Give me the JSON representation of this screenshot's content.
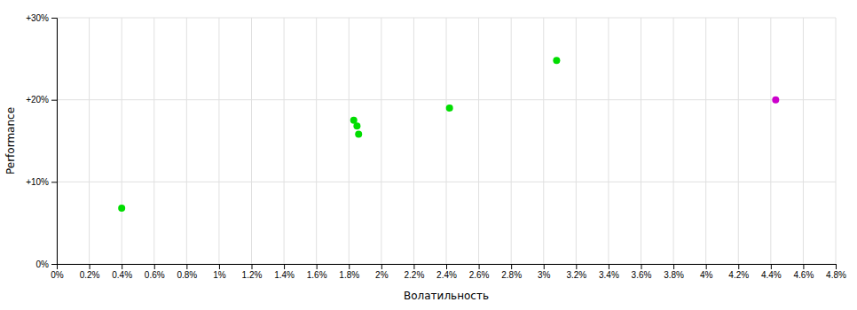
{
  "chart_data": {
    "type": "scatter",
    "xlabel": "Волатильность",
    "ylabel": "Performance",
    "xlim": [
      0,
      0.048
    ],
    "ylim": [
      0,
      0.3
    ],
    "xticks": [
      {
        "value": 0.0,
        "label": "0%"
      },
      {
        "value": 0.002,
        "label": "0.2%"
      },
      {
        "value": 0.004,
        "label": "0.4%"
      },
      {
        "value": 0.006,
        "label": "0.6%"
      },
      {
        "value": 0.008,
        "label": "0.8%"
      },
      {
        "value": 0.01,
        "label": "1%"
      },
      {
        "value": 0.012,
        "label": "1.2%"
      },
      {
        "value": 0.014,
        "label": "1.4%"
      },
      {
        "value": 0.016,
        "label": "1.6%"
      },
      {
        "value": 0.018,
        "label": "1.8%"
      },
      {
        "value": 0.02,
        "label": "2%"
      },
      {
        "value": 0.022,
        "label": "2.2%"
      },
      {
        "value": 0.024,
        "label": "2.4%"
      },
      {
        "value": 0.026,
        "label": "2.6%"
      },
      {
        "value": 0.028,
        "label": "2.8%"
      },
      {
        "value": 0.03,
        "label": "3%"
      },
      {
        "value": 0.032,
        "label": "3.2%"
      },
      {
        "value": 0.034,
        "label": "3.4%"
      },
      {
        "value": 0.036,
        "label": "3.6%"
      },
      {
        "value": 0.038,
        "label": "3.8%"
      },
      {
        "value": 0.04,
        "label": "4%"
      },
      {
        "value": 0.042,
        "label": "4.2%"
      },
      {
        "value": 0.044,
        "label": "4.4%"
      },
      {
        "value": 0.046,
        "label": "4.6%"
      },
      {
        "value": 0.048,
        "label": "4.8%"
      }
    ],
    "yticks": [
      {
        "value": 0.0,
        "label": "0%"
      },
      {
        "value": 0.1,
        "label": "+10%"
      },
      {
        "value": 0.2,
        "label": "+20%"
      },
      {
        "value": 0.3,
        "label": "+30%"
      }
    ],
    "grid": true,
    "series": [
      {
        "color": "#00dd00",
        "x": [
          0.004,
          0.0183,
          0.0185,
          0.0186,
          0.0242,
          0.0308
        ],
        "values": [
          0.068,
          0.175,
          0.168,
          0.158,
          0.19,
          0.248
        ]
      },
      {
        "color": "#cc00cc",
        "x": [
          0.0443
        ],
        "values": [
          0.2
        ]
      }
    ]
  }
}
